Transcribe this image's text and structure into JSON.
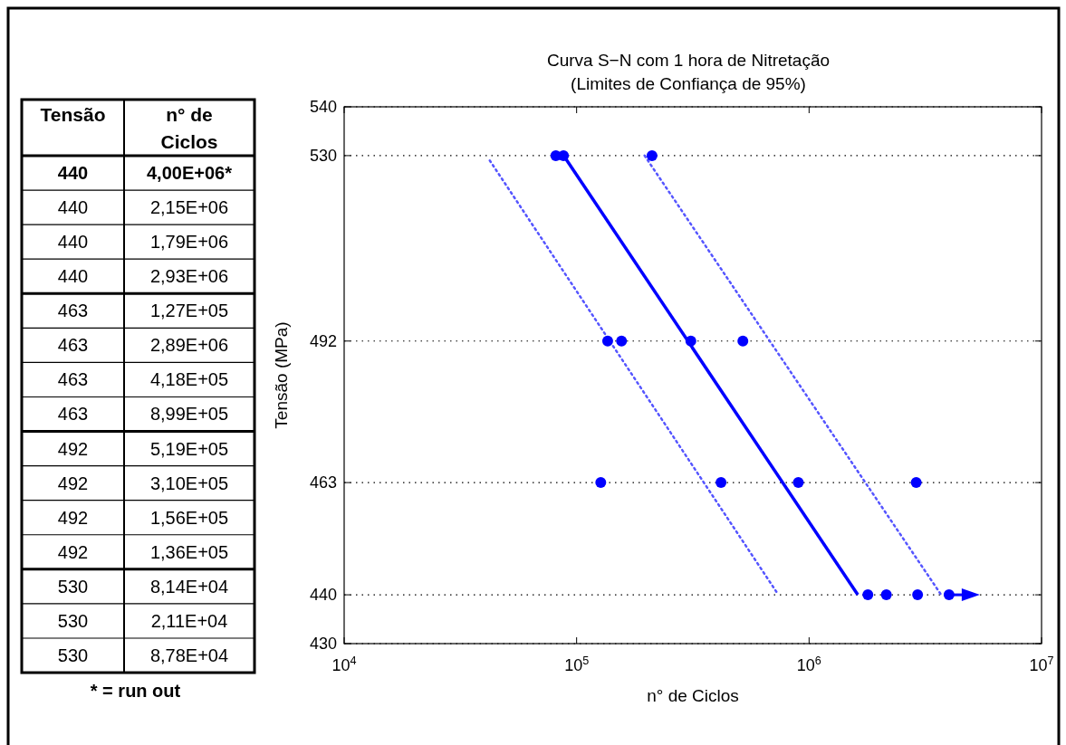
{
  "chart_data": [
    {
      "type": "other",
      "annotations": [
        "Tensão",
        "n° de Ciclos",
        "440",
        "4,00E+06*",
        "440",
        "2,15E+06",
        "440",
        "1,79E+06",
        "440",
        "2,93E+06",
        "463",
        "1,27E+05",
        "463",
        "2,89E+06",
        "463",
        "4,18E+05",
        "463",
        "8,99E+05",
        "492",
        "5,19E+05",
        "492",
        "3,10E+05",
        "492",
        "1,56E+05",
        "492",
        "1,36E+05",
        "530",
        "8,14E+04",
        "530",
        "2,11E+04",
        "530",
        "8,78E+04",
        "* = run out"
      ]
    },
    {
      "type": "scatter",
      "title": "Curva S−N com 1 hora de Nitretação",
      "subtitle": "(Limites de Confiança de 95%)",
      "xlabel": "n° de Ciclos",
      "ylabel": "Tensão (MPa)",
      "log": "x",
      "grid": "y",
      "xlim": [
        10000,
        10000000
      ],
      "xticks": [
        {
          "value": 10000,
          "label": "10$^{4}$"
        },
        {
          "value": 100000,
          "label": "10$^{5}$"
        },
        {
          "value": 1000000,
          "label": "10$^{6}$"
        },
        {
          "value": 10000000,
          "label": "10$^{7}$"
        }
      ],
      "ylim": [
        430,
        540
      ],
      "yticks": [
        430,
        440,
        463,
        492,
        530,
        540
      ],
      "series": [
        {
          "type": "line",
          "x": [
            88000,
            1620000
          ],
          "values": [
            530,
            440
          ],
          "color": "#0000ff",
          "line_style": "solid"
        },
        {
          "type": "line",
          "x": [
            42300,
            738000
          ],
          "values": [
            529,
            440
          ],
          "color": "#5555ff",
          "line_style": "dotted"
        },
        {
          "type": "line",
          "x": [
            196000,
            3700000
          ],
          "values": [
            530,
            440
          ],
          "color": "#5555ff",
          "line_style": "dotted"
        },
        {
          "type": "scatter",
          "x": [
            4000000,
            2150000,
            1790000,
            2930000,
            127000,
            2890000,
            418000,
            899000,
            519000,
            310000,
            156000,
            136000,
            81400,
            211000,
            87800
          ],
          "values": [
            440,
            440,
            440,
            440,
            463,
            463,
            463,
            463,
            492,
            492,
            492,
            492,
            530,
            530,
            530
          ],
          "color": "#0000ff",
          "marker": "circle"
        }
      ]
    }
  ]
}
